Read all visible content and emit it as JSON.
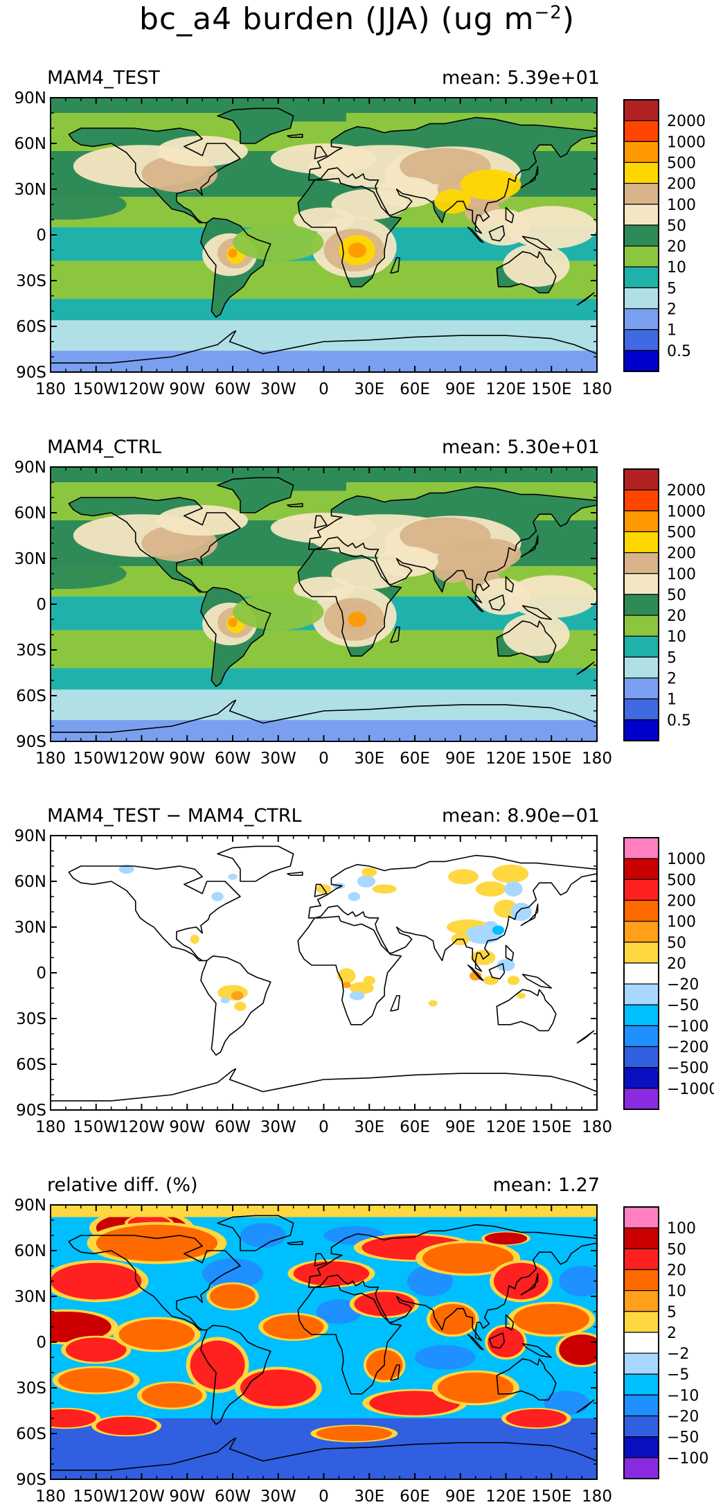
{
  "figure": {
    "title_text": "bc_a4 burden (JJA) (ug m",
    "title_exponent": "−2",
    "title_close": ")"
  },
  "chart_data": [
    {
      "type": "heatmap",
      "title": "MAM4_TEST",
      "mean_label": "mean: 5.39e+01",
      "xlabel": "",
      "ylabel": "",
      "x_ticks": [
        "180",
        "150W",
        "120W",
        "90W",
        "60W",
        "30W",
        "0",
        "30E",
        "60E",
        "90E",
        "120E",
        "150E",
        "180"
      ],
      "y_ticks": [
        "90N",
        "60N",
        "30N",
        "0",
        "30S",
        "60S",
        "90S"
      ],
      "xlim": [
        -180,
        180
      ],
      "ylim": [
        -90,
        90
      ],
      "colorbar_levels": [
        "2000",
        "1000",
        "500",
        "200",
        "100",
        "50",
        "20",
        "10",
        "5",
        "2",
        "1",
        "0.5"
      ],
      "colorbar_colors": [
        "#b22222",
        "#ff4500",
        "#ff9900",
        "#ffd700",
        "#d9b48a",
        "#f5e6c3",
        "#2e8b57",
        "#8cc63f",
        "#20b2aa",
        "#b0e0e6",
        "#7b9ff0",
        "#4169e1",
        "#0000cd"
      ]
    },
    {
      "type": "heatmap",
      "title": "MAM4_CTRL",
      "mean_label": "mean: 5.30e+01",
      "xlabel": "",
      "ylabel": "",
      "x_ticks": [
        "180",
        "150W",
        "120W",
        "90W",
        "60W",
        "30W",
        "0",
        "30E",
        "60E",
        "90E",
        "120E",
        "150E",
        "180"
      ],
      "y_ticks": [
        "90N",
        "60N",
        "30N",
        "0",
        "30S",
        "60S",
        "90S"
      ],
      "xlim": [
        -180,
        180
      ],
      "ylim": [
        -90,
        90
      ],
      "colorbar_levels": [
        "2000",
        "1000",
        "500",
        "200",
        "100",
        "50",
        "20",
        "10",
        "5",
        "2",
        "1",
        "0.5"
      ],
      "colorbar_colors": [
        "#b22222",
        "#ff4500",
        "#ff9900",
        "#ffd700",
        "#d9b48a",
        "#f5e6c3",
        "#2e8b57",
        "#8cc63f",
        "#20b2aa",
        "#b0e0e6",
        "#7b9ff0",
        "#4169e1",
        "#0000cd"
      ]
    },
    {
      "type": "heatmap",
      "title": "MAM4_TEST − MAM4_CTRL",
      "mean_label": "mean: 8.90e−01",
      "xlabel": "",
      "ylabel": "",
      "x_ticks": [
        "180",
        "150W",
        "120W",
        "90W",
        "60W",
        "30W",
        "0",
        "30E",
        "60E",
        "90E",
        "120E",
        "150E",
        "180"
      ],
      "y_ticks": [
        "90N",
        "60N",
        "30N",
        "0",
        "30S",
        "60S",
        "90S"
      ],
      "xlim": [
        -180,
        180
      ],
      "ylim": [
        -90,
        90
      ],
      "colorbar_levels": [
        "1000",
        "500",
        "200",
        "100",
        "50",
        "20",
        "−20",
        "−50",
        "−100",
        "−200",
        "−500",
        "−1000"
      ],
      "colorbar_colors": [
        "#ff80c0",
        "#cc0000",
        "#ff2020",
        "#ff6a00",
        "#ff9f1a",
        "#ffd740",
        "#ffffff",
        "#a8d8ff",
        "#00bfff",
        "#1e90ff",
        "#3060e0",
        "#0a10c0",
        "#8a2be2"
      ]
    },
    {
      "type": "heatmap",
      "title": "relative diff. (%)",
      "mean_label": "mean:   1.27",
      "xlabel": "",
      "ylabel": "",
      "x_ticks": [
        "180",
        "150W",
        "120W",
        "90W",
        "60W",
        "30W",
        "0",
        "30E",
        "60E",
        "90E",
        "120E",
        "150E",
        "180"
      ],
      "y_ticks": [
        "90N",
        "60N",
        "30N",
        "0",
        "30S",
        "60S",
        "90S"
      ],
      "xlim": [
        -180,
        180
      ],
      "ylim": [
        -90,
        90
      ],
      "colorbar_levels": [
        "100",
        "50",
        "20",
        "10",
        "5",
        "2",
        "−2",
        "−5",
        "−10",
        "−20",
        "−50",
        "−100"
      ],
      "colorbar_colors": [
        "#ff80c0",
        "#cc0000",
        "#ff2020",
        "#ff6a00",
        "#ff9f1a",
        "#ffd740",
        "#ffffff",
        "#a8d8ff",
        "#00bfff",
        "#1e90ff",
        "#3060e0",
        "#0a10c0",
        "#8a2be2"
      ]
    }
  ]
}
